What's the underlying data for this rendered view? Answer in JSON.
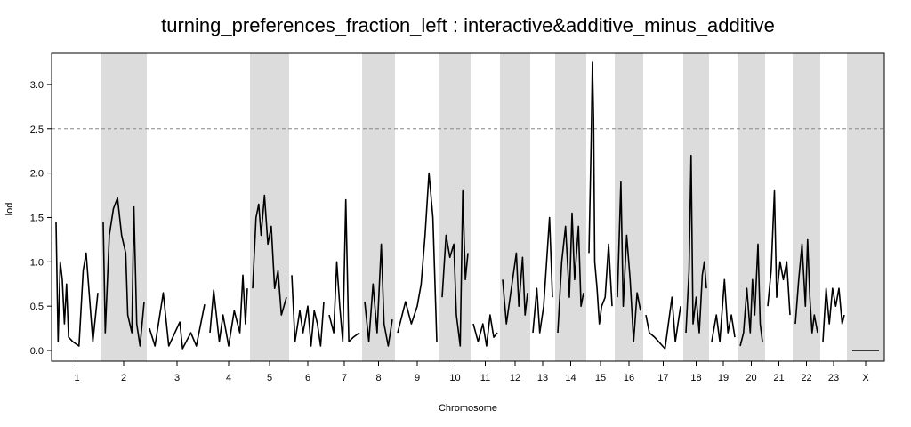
{
  "chart_data": {
    "type": "line",
    "title": "turning_preferences_fraction_left : interactive&additive_minus_additive",
    "xlabel": "Chromosome",
    "ylabel": "lod",
    "ylim": [
      -0.12,
      3.35
    ],
    "yticks": [
      "0.0",
      "0.5",
      "1.0",
      "1.5",
      "2.0",
      "2.5",
      "3.0"
    ],
    "threshold": 2.5,
    "threshold_style": "dashed gray",
    "band_color": "#dcdcdc",
    "line_color": "#000000",
    "chromosomes": [
      {
        "label": "1",
        "shaded": false,
        "peaks": [
          [
            0.0,
            1.45
          ],
          [
            0.05,
            0.1
          ],
          [
            0.1,
            1.0
          ],
          [
            0.15,
            0.8
          ],
          [
            0.2,
            0.3
          ],
          [
            0.25,
            0.75
          ],
          [
            0.3,
            0.15
          ],
          [
            0.4,
            0.1
          ],
          [
            0.55,
            0.05
          ],
          [
            0.65,
            0.9
          ],
          [
            0.72,
            1.1
          ],
          [
            0.8,
            0.6
          ],
          [
            0.88,
            0.1
          ],
          [
            1.0,
            0.65
          ]
        ]
      },
      {
        "label": "2",
        "shaded": true,
        "peaks": [
          [
            0.0,
            1.45
          ],
          [
            0.05,
            0.2
          ],
          [
            0.15,
            1.3
          ],
          [
            0.25,
            1.6
          ],
          [
            0.35,
            1.72
          ],
          [
            0.45,
            1.3
          ],
          [
            0.55,
            1.1
          ],
          [
            0.6,
            0.4
          ],
          [
            0.7,
            0.2
          ],
          [
            0.75,
            1.62
          ],
          [
            0.82,
            0.3
          ],
          [
            0.9,
            0.05
          ],
          [
            1.0,
            0.55
          ]
        ]
      },
      {
        "label": "3",
        "shaded": false,
        "peaks": [
          [
            0.0,
            0.25
          ],
          [
            0.1,
            0.05
          ],
          [
            0.25,
            0.65
          ],
          [
            0.35,
            0.05
          ],
          [
            0.55,
            0.32
          ],
          [
            0.6,
            0.02
          ],
          [
            0.75,
            0.2
          ],
          [
            0.85,
            0.05
          ],
          [
            1.0,
            0.52
          ]
        ]
      },
      {
        "label": "4",
        "shaded": false,
        "peaks": [
          [
            0.0,
            0.2
          ],
          [
            0.1,
            0.68
          ],
          [
            0.25,
            0.1
          ],
          [
            0.35,
            0.4
          ],
          [
            0.5,
            0.05
          ],
          [
            0.65,
            0.45
          ],
          [
            0.8,
            0.2
          ],
          [
            0.88,
            0.85
          ],
          [
            0.95,
            0.3
          ],
          [
            1.0,
            0.7
          ]
        ]
      },
      {
        "label": "5",
        "shaded": true,
        "peaks": [
          [
            0.0,
            0.7
          ],
          [
            0.1,
            1.5
          ],
          [
            0.18,
            1.65
          ],
          [
            0.25,
            1.3
          ],
          [
            0.35,
            1.75
          ],
          [
            0.45,
            1.2
          ],
          [
            0.55,
            1.4
          ],
          [
            0.65,
            0.7
          ],
          [
            0.75,
            0.9
          ],
          [
            0.85,
            0.4
          ],
          [
            1.0,
            0.6
          ]
        ]
      },
      {
        "label": "6",
        "shaded": false,
        "peaks": [
          [
            0.0,
            0.85
          ],
          [
            0.1,
            0.1
          ],
          [
            0.25,
            0.45
          ],
          [
            0.35,
            0.2
          ],
          [
            0.5,
            0.5
          ],
          [
            0.6,
            0.05
          ],
          [
            0.7,
            0.45
          ],
          [
            0.8,
            0.3
          ],
          [
            0.9,
            0.05
          ],
          [
            1.0,
            0.55
          ]
        ]
      },
      {
        "label": "7",
        "shaded": false,
        "peaks": [
          [
            0.0,
            0.4
          ],
          [
            0.15,
            0.2
          ],
          [
            0.25,
            1.0
          ],
          [
            0.35,
            0.5
          ],
          [
            0.45,
            0.1
          ],
          [
            0.55,
            1.7
          ],
          [
            0.65,
            0.1
          ],
          [
            0.8,
            0.15
          ],
          [
            1.0,
            0.2
          ]
        ]
      },
      {
        "label": "8",
        "shaded": true,
        "peaks": [
          [
            0.0,
            0.55
          ],
          [
            0.15,
            0.1
          ],
          [
            0.3,
            0.75
          ],
          [
            0.45,
            0.2
          ],
          [
            0.6,
            1.2
          ],
          [
            0.7,
            0.3
          ],
          [
            0.85,
            0.05
          ],
          [
            1.0,
            0.35
          ]
        ]
      },
      {
        "label": "9",
        "shaded": false,
        "peaks": [
          [
            0.0,
            0.2
          ],
          [
            0.2,
            0.55
          ],
          [
            0.35,
            0.3
          ],
          [
            0.5,
            0.5
          ],
          [
            0.6,
            0.75
          ],
          [
            0.7,
            1.3
          ],
          [
            0.8,
            2.0
          ],
          [
            0.9,
            1.5
          ],
          [
            0.95,
            0.8
          ],
          [
            1.0,
            0.1
          ]
        ]
      },
      {
        "label": "10",
        "shaded": true,
        "peaks": [
          [
            0.0,
            0.6
          ],
          [
            0.15,
            1.3
          ],
          [
            0.3,
            1.05
          ],
          [
            0.45,
            1.2
          ],
          [
            0.55,
            0.4
          ],
          [
            0.7,
            0.05
          ],
          [
            0.8,
            1.8
          ],
          [
            0.9,
            0.8
          ],
          [
            1.0,
            1.1
          ]
        ]
      },
      {
        "label": "11",
        "shaded": false,
        "peaks": [
          [
            0.0,
            0.3
          ],
          [
            0.2,
            0.1
          ],
          [
            0.4,
            0.3
          ],
          [
            0.55,
            0.05
          ],
          [
            0.7,
            0.4
          ],
          [
            0.85,
            0.15
          ],
          [
            1.0,
            0.2
          ]
        ]
      },
      {
        "label": "12",
        "shaded": true,
        "peaks": [
          [
            0.0,
            0.8
          ],
          [
            0.15,
            0.3
          ],
          [
            0.3,
            0.6
          ],
          [
            0.45,
            0.9
          ],
          [
            0.55,
            1.1
          ],
          [
            0.65,
            0.5
          ],
          [
            0.8,
            1.05
          ],
          [
            0.9,
            0.4
          ],
          [
            1.0,
            0.65
          ]
        ]
      },
      {
        "label": "13",
        "shaded": false,
        "peaks": [
          [
            0.0,
            0.2
          ],
          [
            0.2,
            0.7
          ],
          [
            0.35,
            0.2
          ],
          [
            0.55,
            0.5
          ],
          [
            0.7,
            1.0
          ],
          [
            0.85,
            1.5
          ],
          [
            1.0,
            0.6
          ]
        ]
      },
      {
        "label": "14",
        "shaded": true,
        "peaks": [
          [
            0.0,
            0.2
          ],
          [
            0.15,
            1.0
          ],
          [
            0.3,
            1.4
          ],
          [
            0.45,
            0.6
          ],
          [
            0.55,
            1.55
          ],
          [
            0.65,
            0.8
          ],
          [
            0.8,
            1.4
          ],
          [
            0.9,
            0.5
          ],
          [
            1.0,
            0.65
          ]
        ]
      },
      {
        "label": "15",
        "shaded": false,
        "peaks": [
          [
            0.0,
            1.1
          ],
          [
            0.1,
            2.4
          ],
          [
            0.15,
            3.25
          ],
          [
            0.2,
            2.6
          ],
          [
            0.25,
            1.0
          ],
          [
            0.35,
            0.7
          ],
          [
            0.45,
            0.3
          ],
          [
            0.55,
            0.5
          ],
          [
            0.7,
            0.6
          ],
          [
            0.85,
            1.2
          ],
          [
            1.0,
            0.5
          ]
        ]
      },
      {
        "label": "16",
        "shaded": true,
        "peaks": [
          [
            0.0,
            0.6
          ],
          [
            0.15,
            1.9
          ],
          [
            0.25,
            0.5
          ],
          [
            0.4,
            1.3
          ],
          [
            0.55,
            0.8
          ],
          [
            0.7,
            0.1
          ],
          [
            0.85,
            0.65
          ],
          [
            1.0,
            0.45
          ]
        ]
      },
      {
        "label": "17",
        "shaded": false,
        "peaks": [
          [
            0.0,
            0.4
          ],
          [
            0.1,
            0.2
          ],
          [
            0.25,
            0.15
          ],
          [
            0.55,
            0.02
          ],
          [
            0.75,
            0.6
          ],
          [
            0.85,
            0.1
          ],
          [
            1.0,
            0.5
          ]
        ]
      },
      {
        "label": "18",
        "shaded": true,
        "peaks": [
          [
            0.0,
            0.2
          ],
          [
            0.15,
            0.9
          ],
          [
            0.25,
            2.2
          ],
          [
            0.35,
            0.3
          ],
          [
            0.5,
            0.6
          ],
          [
            0.65,
            0.2
          ],
          [
            0.8,
            0.85
          ],
          [
            0.9,
            1.0
          ],
          [
            1.0,
            0.7
          ]
        ]
      },
      {
        "label": "19",
        "shaded": false,
        "peaks": [
          [
            0.0,
            0.1
          ],
          [
            0.2,
            0.4
          ],
          [
            0.35,
            0.1
          ],
          [
            0.55,
            0.8
          ],
          [
            0.7,
            0.2
          ],
          [
            0.85,
            0.4
          ],
          [
            1.0,
            0.15
          ]
        ]
      },
      {
        "label": "20",
        "shaded": true,
        "peaks": [
          [
            0.0,
            0.05
          ],
          [
            0.15,
            0.2
          ],
          [
            0.3,
            0.7
          ],
          [
            0.45,
            0.2
          ],
          [
            0.55,
            0.8
          ],
          [
            0.65,
            0.4
          ],
          [
            0.8,
            1.2
          ],
          [
            0.9,
            0.3
          ],
          [
            1.0,
            0.1
          ]
        ]
      },
      {
        "label": "21",
        "shaded": false,
        "peaks": [
          [
            0.0,
            0.5
          ],
          [
            0.15,
            0.9
          ],
          [
            0.3,
            1.8
          ],
          [
            0.4,
            0.6
          ],
          [
            0.55,
            1.0
          ],
          [
            0.7,
            0.8
          ],
          [
            0.85,
            1.0
          ],
          [
            1.0,
            0.4
          ]
        ]
      },
      {
        "label": "22",
        "shaded": true,
        "peaks": [
          [
            0.0,
            0.3
          ],
          [
            0.15,
            0.8
          ],
          [
            0.3,
            1.2
          ],
          [
            0.45,
            0.5
          ],
          [
            0.55,
            1.25
          ],
          [
            0.65,
            0.6
          ],
          [
            0.75,
            0.2
          ],
          [
            0.85,
            0.4
          ],
          [
            1.0,
            0.2
          ]
        ]
      },
      {
        "label": "23",
        "shaded": false,
        "peaks": [
          [
            0.0,
            0.1
          ],
          [
            0.15,
            0.7
          ],
          [
            0.3,
            0.3
          ],
          [
            0.45,
            0.7
          ],
          [
            0.6,
            0.5
          ],
          [
            0.75,
            0.7
          ],
          [
            0.9,
            0.3
          ],
          [
            1.0,
            0.4
          ]
        ]
      },
      {
        "label": "X",
        "shaded": true,
        "peaks": [
          [
            0.0,
            0.0
          ],
          [
            1.0,
            0.0
          ]
        ]
      }
    ]
  }
}
